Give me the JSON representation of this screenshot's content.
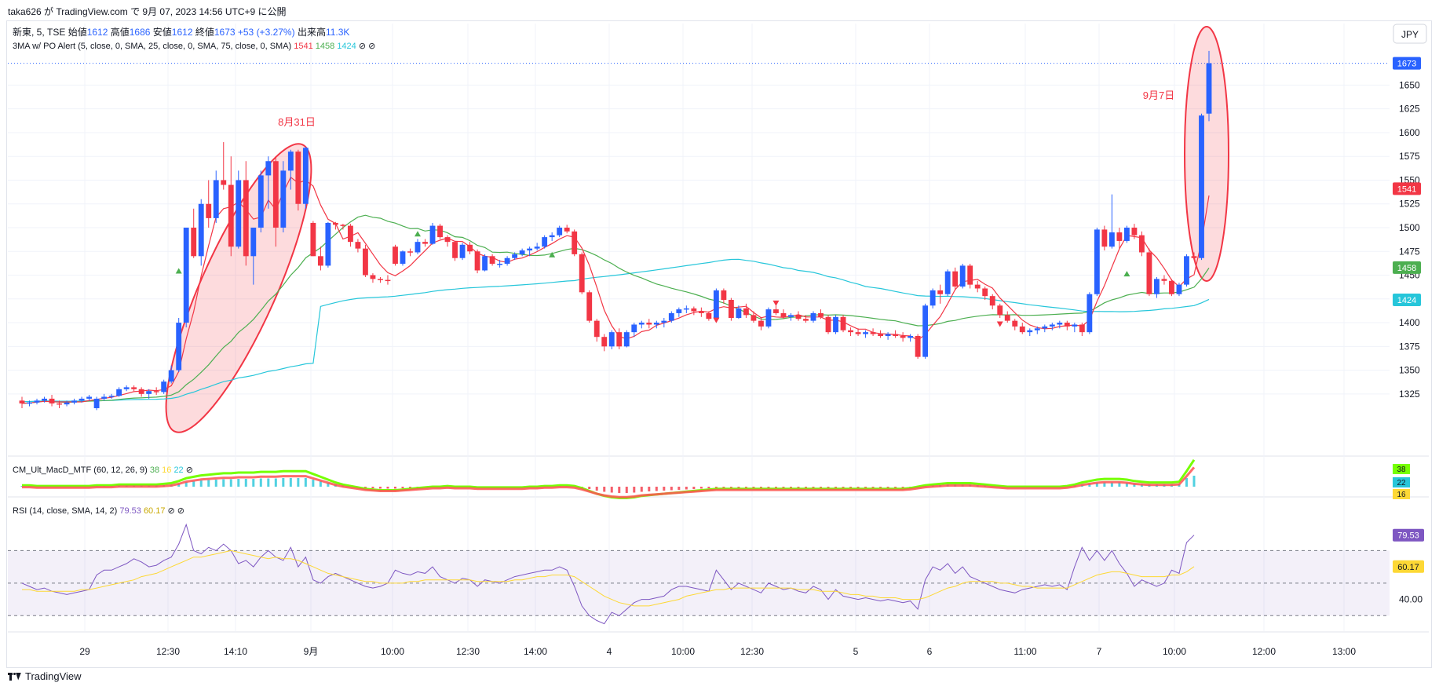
{
  "header": {
    "published_line": "taka626 が TradingView.com で 9月 07, 2023 14:56 UTC+9 に公開"
  },
  "legend": {
    "symbol": "新東, 5, TSE",
    "open_label": "始値",
    "open_value": "1612",
    "high_label": "高値",
    "high_value": "1686",
    "low_label": "安値",
    "low_value": "1612",
    "close_label": "終値",
    "close_value": "1673",
    "change": "+53 (+3.27%)",
    "volume_label": "出来高",
    "volume_value": "11.3K",
    "indicator_name": "3MA w/ PO Alert (5, close, 0, SMA, 25, close, 0, SMA, 75, close, 0, SMA)",
    "ma5_value": "1541",
    "ma25_value": "1458",
    "ma75_value": "1424"
  },
  "macd_legend": {
    "name": "CM_Ult_MacD_MTF (60, 12, 26, 9)",
    "v1": "38",
    "v2": "16",
    "v3": "22"
  },
  "rsi_legend": {
    "name": "RSI (14, close, SMA, 14, 2)",
    "v1": "79.53",
    "v2": "60.17"
  },
  "currency_button": "JPY",
  "annotations": {
    "left": "8月31日",
    "right": "9月7日"
  },
  "footer": {
    "brand": "TradingView"
  },
  "colors": {
    "up": "#2962ff",
    "down": "#f23645",
    "ma5": "#f23645",
    "ma25": "#4caf50",
    "ma75": "#26c6da",
    "rsi": "#7e57c2",
    "rsi_ma": "#fdd835",
    "macd_up": "#76ff03",
    "macd_down": "#ff5252"
  },
  "chart_data": {
    "type": "candlestick",
    "y_axis": {
      "min": 1300,
      "max": 1700,
      "ticks": [
        1325,
        1350,
        1375,
        1400,
        1425,
        1450,
        1475,
        1500,
        1525,
        1550,
        1575,
        1600,
        1625,
        1650
      ]
    },
    "price_badges": [
      {
        "label": "1673",
        "value": 1673,
        "color": "#2962ff"
      },
      {
        "label": "1541",
        "value": 1541,
        "color": "#f23645"
      },
      {
        "label": "1458",
        "value": 1458,
        "color": "#4caf50"
      },
      {
        "label": "1424",
        "value": 1424,
        "color": "#26c6da"
      }
    ],
    "x_ticks": [
      "29",
      "12:30",
      "14:10",
      "9月",
      "10:00",
      "12:30",
      "14:00",
      "4",
      "10:00",
      "12:30",
      "5",
      "6",
      "11:00",
      "7",
      "10:00",
      "12:00",
      "13:00"
    ],
    "candles": [
      [
        1318,
        1322,
        1310,
        1315
      ],
      [
        1315,
        1318,
        1312,
        1316
      ],
      [
        1316,
        1320,
        1314,
        1318
      ],
      [
        1318,
        1322,
        1316,
        1320
      ],
      [
        1320,
        1324,
        1312,
        1315
      ],
      [
        1315,
        1318,
        1310,
        1314
      ],
      [
        1314,
        1318,
        1312,
        1316
      ],
      [
        1316,
        1320,
        1314,
        1318
      ],
      [
        1318,
        1322,
        1316,
        1320
      ],
      [
        1320,
        1324,
        1318,
        1322
      ],
      [
        1310,
        1322,
        1308,
        1320
      ],
      [
        1320,
        1325,
        1318,
        1322
      ],
      [
        1322,
        1325,
        1320,
        1323
      ],
      [
        1323,
        1332,
        1322,
        1330
      ],
      [
        1330,
        1334,
        1328,
        1332
      ],
      [
        1332,
        1334,
        1328,
        1330
      ],
      [
        1330,
        1332,
        1322,
        1325
      ],
      [
        1325,
        1330,
        1320,
        1328
      ],
      [
        1328,
        1332,
        1324,
        1327
      ],
      [
        1327,
        1340,
        1325,
        1338
      ],
      [
        1338,
        1355,
        1336,
        1350
      ],
      [
        1350,
        1405,
        1348,
        1400
      ],
      [
        1400,
        1500,
        1395,
        1500
      ],
      [
        1500,
        1520,
        1468,
        1470
      ],
      [
        1470,
        1530,
        1460,
        1525
      ],
      [
        1525,
        1550,
        1500,
        1510
      ],
      [
        1510,
        1560,
        1505,
        1550
      ],
      [
        1550,
        1590,
        1540,
        1545
      ],
      [
        1545,
        1575,
        1470,
        1480
      ],
      [
        1480,
        1560,
        1478,
        1550
      ],
      [
        1550,
        1570,
        1460,
        1470
      ],
      [
        1470,
        1500,
        1440,
        1500
      ],
      [
        1500,
        1560,
        1495,
        1555
      ],
      [
        1555,
        1575,
        1520,
        1570
      ],
      [
        1570,
        1575,
        1480,
        1500
      ],
      [
        1500,
        1570,
        1495,
        1560
      ],
      [
        1560,
        1582,
        1540,
        1580
      ],
      [
        1580,
        1582,
        1518,
        1525
      ],
      [
        1525,
        1585,
        1520,
        1584
      ],
      [
        1505,
        1507,
        1470,
        1470
      ],
      [
        1470,
        1480,
        1455,
        1460
      ],
      [
        1460,
        1506,
        1458,
        1505
      ],
      [
        1505,
        1506,
        1498,
        1503
      ],
      [
        1503,
        1504,
        1498,
        1502
      ],
      [
        1502,
        1504,
        1480,
        1485
      ],
      [
        1485,
        1488,
        1474,
        1478
      ],
      [
        1478,
        1482,
        1448,
        1450
      ],
      [
        1450,
        1452,
        1442,
        1446
      ],
      [
        1446,
        1448,
        1442,
        1445
      ],
      [
        1445,
        1450,
        1440,
        1444
      ],
      [
        1480,
        1482,
        1460,
        1462
      ],
      [
        1462,
        1476,
        1460,
        1475
      ],
      [
        1475,
        1478,
        1470,
        1474
      ],
      [
        1474,
        1488,
        1472,
        1485
      ],
      [
        1485,
        1488,
        1480,
        1483
      ],
      [
        1483,
        1505,
        1482,
        1502
      ],
      [
        1502,
        1504,
        1488,
        1490
      ],
      [
        1490,
        1492,
        1480,
        1485
      ],
      [
        1485,
        1486,
        1465,
        1468
      ],
      [
        1468,
        1484,
        1466,
        1482
      ],
      [
        1482,
        1485,
        1472,
        1475
      ],
      [
        1475,
        1477,
        1452,
        1455
      ],
      [
        1455,
        1472,
        1454,
        1470
      ],
      [
        1470,
        1472,
        1460,
        1462
      ],
      [
        1462,
        1466,
        1458,
        1462
      ],
      [
        1462,
        1470,
        1460,
        1468
      ],
      [
        1468,
        1474,
        1466,
        1472
      ],
      [
        1472,
        1478,
        1470,
        1476
      ],
      [
        1476,
        1480,
        1470,
        1478
      ],
      [
        1478,
        1484,
        1476,
        1480
      ],
      [
        1480,
        1492,
        1478,
        1490
      ],
      [
        1490,
        1495,
        1486,
        1492
      ],
      [
        1492,
        1502,
        1490,
        1500
      ],
      [
        1500,
        1503,
        1494,
        1496
      ],
      [
        1496,
        1498,
        1470,
        1472
      ],
      [
        1472,
        1474,
        1430,
        1432
      ],
      [
        1432,
        1434,
        1400,
        1402
      ],
      [
        1402,
        1404,
        1380,
        1385
      ],
      [
        1385,
        1388,
        1370,
        1375
      ],
      [
        1375,
        1392,
        1372,
        1390
      ],
      [
        1390,
        1394,
        1372,
        1375
      ],
      [
        1375,
        1392,
        1374,
        1390
      ],
      [
        1390,
        1400,
        1385,
        1398
      ],
      [
        1398,
        1402,
        1394,
        1400
      ],
      [
        1400,
        1404,
        1394,
        1398
      ],
      [
        1398,
        1402,
        1394,
        1400
      ],
      [
        1400,
        1405,
        1395,
        1402
      ],
      [
        1402,
        1412,
        1400,
        1410
      ],
      [
        1410,
        1416,
        1406,
        1414
      ],
      [
        1414,
        1418,
        1410,
        1415
      ],
      [
        1415,
        1417,
        1408,
        1412
      ],
      [
        1412,
        1416,
        1406,
        1410
      ],
      [
        1410,
        1412,
        1402,
        1404
      ],
      [
        1404,
        1436,
        1402,
        1434
      ],
      [
        1434,
        1436,
        1420,
        1424
      ],
      [
        1424,
        1426,
        1402,
        1405
      ],
      [
        1405,
        1418,
        1404,
        1415
      ],
      [
        1415,
        1420,
        1405,
        1408
      ],
      [
        1408,
        1412,
        1400,
        1402
      ],
      [
        1402,
        1406,
        1392,
        1396
      ],
      [
        1396,
        1416,
        1394,
        1414
      ],
      [
        1414,
        1418,
        1408,
        1410
      ],
      [
        1410,
        1414,
        1404,
        1406
      ],
      [
        1406,
        1410,
        1402,
        1408
      ],
      [
        1408,
        1412,
        1402,
        1404
      ],
      [
        1404,
        1408,
        1400,
        1402
      ],
      [
        1402,
        1412,
        1400,
        1410
      ],
      [
        1410,
        1414,
        1404,
        1406
      ],
      [
        1406,
        1408,
        1388,
        1390
      ],
      [
        1390,
        1408,
        1388,
        1406
      ],
      [
        1406,
        1408,
        1390,
        1392
      ],
      [
        1392,
        1395,
        1386,
        1390
      ],
      [
        1390,
        1394,
        1386,
        1388
      ],
      [
        1388,
        1392,
        1384,
        1390
      ],
      [
        1390,
        1394,
        1386,
        1388
      ],
      [
        1388,
        1392,
        1384,
        1386
      ],
      [
        1386,
        1390,
        1382,
        1388
      ],
      [
        1388,
        1392,
        1384,
        1386
      ],
      [
        1386,
        1390,
        1380,
        1384
      ],
      [
        1384,
        1388,
        1380,
        1386
      ],
      [
        1386,
        1388,
        1362,
        1364
      ],
      [
        1364,
        1420,
        1362,
        1418
      ],
      [
        1418,
        1436,
        1415,
        1434
      ],
      [
        1434,
        1440,
        1420,
        1430
      ],
      [
        1430,
        1456,
        1428,
        1454
      ],
      [
        1454,
        1458,
        1434,
        1438
      ],
      [
        1438,
        1462,
        1436,
        1460
      ],
      [
        1460,
        1462,
        1436,
        1440
      ],
      [
        1440,
        1444,
        1432,
        1436
      ],
      [
        1436,
        1438,
        1424,
        1428
      ],
      [
        1428,
        1430,
        1414,
        1418
      ],
      [
        1418,
        1420,
        1405,
        1408
      ],
      [
        1408,
        1412,
        1400,
        1402
      ],
      [
        1402,
        1404,
        1392,
        1396
      ],
      [
        1396,
        1400,
        1388,
        1390
      ],
      [
        1390,
        1394,
        1386,
        1392
      ],
      [
        1392,
        1396,
        1388,
        1394
      ],
      [
        1394,
        1398,
        1390,
        1396
      ],
      [
        1396,
        1400,
        1392,
        1398
      ],
      [
        1398,
        1402,
        1394,
        1400
      ],
      [
        1400,
        1402,
        1392,
        1396
      ],
      [
        1396,
        1400,
        1390,
        1398
      ],
      [
        1398,
        1400,
        1386,
        1390
      ],
      [
        1390,
        1432,
        1388,
        1430
      ],
      [
        1430,
        1500,
        1428,
        1498
      ],
      [
        1498,
        1502,
        1476,
        1480
      ],
      [
        1480,
        1535,
        1478,
        1495
      ],
      [
        1495,
        1500,
        1478,
        1486
      ],
      [
        1486,
        1502,
        1484,
        1500
      ],
      [
        1500,
        1504,
        1488,
        1492
      ],
      [
        1492,
        1496,
        1470,
        1474
      ],
      [
        1474,
        1478,
        1428,
        1430
      ],
      [
        1430,
        1448,
        1426,
        1446
      ],
      [
        1446,
        1450,
        1440,
        1444
      ],
      [
        1444,
        1446,
        1428,
        1430
      ],
      [
        1430,
        1442,
        1428,
        1440
      ],
      [
        1440,
        1472,
        1438,
        1470
      ],
      [
        1470,
        1474,
        1466,
        1468
      ],
      [
        1468,
        1620,
        1466,
        1618
      ],
      [
        1620,
        1686,
        1612,
        1673
      ]
    ],
    "series": [
      {
        "name": "5"
      },
      {
        "name": "25"
      },
      {
        "name": "75"
      }
    ],
    "rsi": {
      "levels": [
        70,
        50,
        30
      ],
      "tick_labels": [
        "40.00"
      ],
      "values": [
        50,
        48,
        46,
        47,
        45,
        44,
        43,
        44,
        45,
        46,
        55,
        58,
        58,
        60,
        62,
        65,
        63,
        60,
        61,
        64,
        66,
        74,
        86,
        70,
        68,
        72,
        70,
        74,
        70,
        62,
        64,
        60,
        66,
        70,
        66,
        64,
        72,
        60,
        66,
        52,
        50,
        54,
        56,
        54,
        52,
        50,
        48,
        47,
        48,
        50,
        58,
        56,
        55,
        57,
        56,
        60,
        54,
        52,
        50,
        53,
        52,
        48,
        52,
        51,
        50,
        52,
        54,
        55,
        56,
        57,
        58,
        58,
        60,
        58,
        48,
        36,
        30,
        27,
        25,
        32,
        30,
        34,
        38,
        40,
        40,
        41,
        42,
        46,
        48,
        48,
        47,
        46,
        45,
        58,
        52,
        46,
        50,
        48,
        46,
        44,
        50,
        48,
        46,
        47,
        45,
        44,
        48,
        46,
        40,
        46,
        42,
        41,
        40,
        41,
        40,
        39,
        40,
        39,
        38,
        39,
        34,
        52,
        60,
        58,
        62,
        56,
        60,
        54,
        52,
        50,
        48,
        46,
        45,
        44,
        46,
        47,
        48,
        49,
        48,
        49,
        46,
        60,
        72,
        64,
        70,
        64,
        70,
        62,
        56,
        48,
        52,
        50,
        48,
        50,
        58,
        56,
        75,
        79.53
      ]
    },
    "rsi_ma": {
      "values": [
        46,
        46,
        45,
        45,
        45,
        45,
        45,
        45,
        46,
        46,
        47,
        48,
        49,
        50,
        51,
        52,
        54,
        55,
        56,
        58,
        60,
        62,
        64,
        66,
        66,
        67,
        68,
        69,
        70,
        69,
        68,
        67,
        66,
        65,
        66,
        65,
        65,
        64,
        62,
        60,
        58,
        56,
        55,
        54,
        53,
        52,
        51,
        51,
        50,
        50,
        50,
        50,
        51,
        51,
        52,
        52,
        52,
        52,
        52,
        52,
        52,
        51,
        51,
        51,
        51,
        51,
        52,
        52,
        53,
        54,
        54,
        55,
        55,
        55,
        54,
        51,
        48,
        45,
        42,
        40,
        38,
        37,
        36,
        36,
        36,
        37,
        38,
        39,
        40,
        42,
        43,
        44,
        45,
        46,
        46,
        47,
        47,
        47,
        47,
        47,
        47,
        47,
        47,
        47,
        46,
        46,
        46,
        45,
        45,
        45,
        44,
        43,
        43,
        42,
        42,
        41,
        41,
        41,
        40,
        40,
        40,
        41,
        43,
        45,
        47,
        48,
        50,
        51,
        51,
        51,
        51,
        50,
        50,
        49,
        48,
        48,
        47,
        47,
        47,
        47,
        47,
        49,
        51,
        53,
        55,
        56,
        57,
        57,
        56,
        55,
        54,
        54,
        54,
        54,
        55,
        55,
        57,
        60.17
      ]
    },
    "macd": {
      "values": [
        2,
        2,
        1,
        1,
        1,
        1,
        1,
        1,
        1,
        1,
        2,
        2,
        2,
        3,
        3,
        3,
        3,
        3,
        3,
        4,
        5,
        8,
        12,
        14,
        16,
        17,
        18,
        19,
        19,
        20,
        20,
        20,
        21,
        21,
        21,
        22,
        22,
        22,
        22,
        18,
        14,
        10,
        6,
        3,
        1,
        -1,
        -3,
        -4,
        -5,
        -5,
        -5,
        -4,
        -3,
        -2,
        -1,
        0,
        0,
        1,
        0,
        0,
        0,
        -1,
        -1,
        -1,
        -1,
        -1,
        -1,
        -1,
        0,
        0,
        1,
        1,
        2,
        2,
        1,
        -2,
        -6,
        -10,
        -13,
        -15,
        -16,
        -16,
        -15,
        -13,
        -12,
        -11,
        -10,
        -9,
        -8,
        -7,
        -6,
        -5,
        -4,
        -3,
        -3,
        -3,
        -3,
        -3,
        -3,
        -3,
        -3,
        -3,
        -3,
        -3,
        -3,
        -3,
        -3,
        -3,
        -3,
        -3,
        -3,
        -3,
        -3,
        -3,
        -3,
        -3,
        -3,
        -3,
        -3,
        -2,
        0,
        2,
        3,
        4,
        5,
        5,
        5,
        5,
        4,
        3,
        2,
        1,
        0,
        0,
        0,
        0,
        0,
        0,
        0,
        0,
        1,
        3,
        6,
        8,
        10,
        11,
        11,
        11,
        10,
        8,
        7,
        6,
        6,
        6,
        6,
        7,
        22,
        38
      ]
    }
  }
}
